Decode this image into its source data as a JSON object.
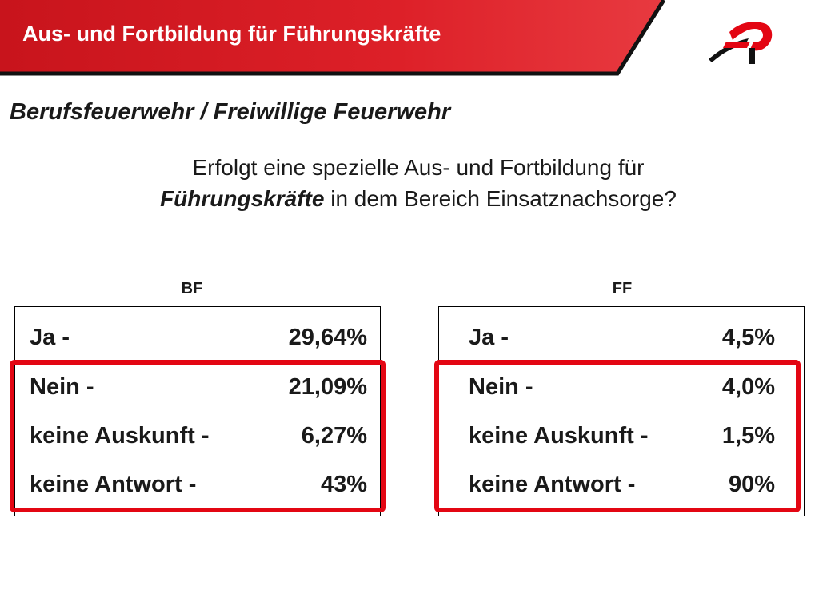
{
  "header": {
    "title": "Aus- und Fortbildung für Führungskräfte",
    "logo_icon": "fire-department-logo-icon"
  },
  "subtitle": "Berufsfeuerwehr / Freiwillige Feuerwehr",
  "question": {
    "line1": "Erfolgt eine spezielle Aus- und Fortbildung für",
    "line2_bold": "Führungskräfte",
    "line2_rest": " in dem Bereich Einsatznachsorge?"
  },
  "colors": {
    "accent": "#e30613",
    "header_red": "#d41820",
    "highlight": "#e30613"
  },
  "columns": [
    {
      "heading": "BF",
      "rows": [
        {
          "label": "Ja -",
          "value": "29,64%"
        },
        {
          "label": "Nein -",
          "value": "21,09%"
        },
        {
          "label": "keine Auskunft -",
          "value": "6,27%"
        },
        {
          "label": "keine Antwort -",
          "value": "43%"
        }
      ]
    },
    {
      "heading": "FF",
      "rows": [
        {
          "label": "Ja -",
          "value": "4,5%"
        },
        {
          "label": "Nein -",
          "value": "4,0%"
        },
        {
          "label": "keine Auskunft -",
          "value": "1,5%"
        },
        {
          "label": "keine Antwort -",
          "value": "90%"
        }
      ]
    }
  ]
}
